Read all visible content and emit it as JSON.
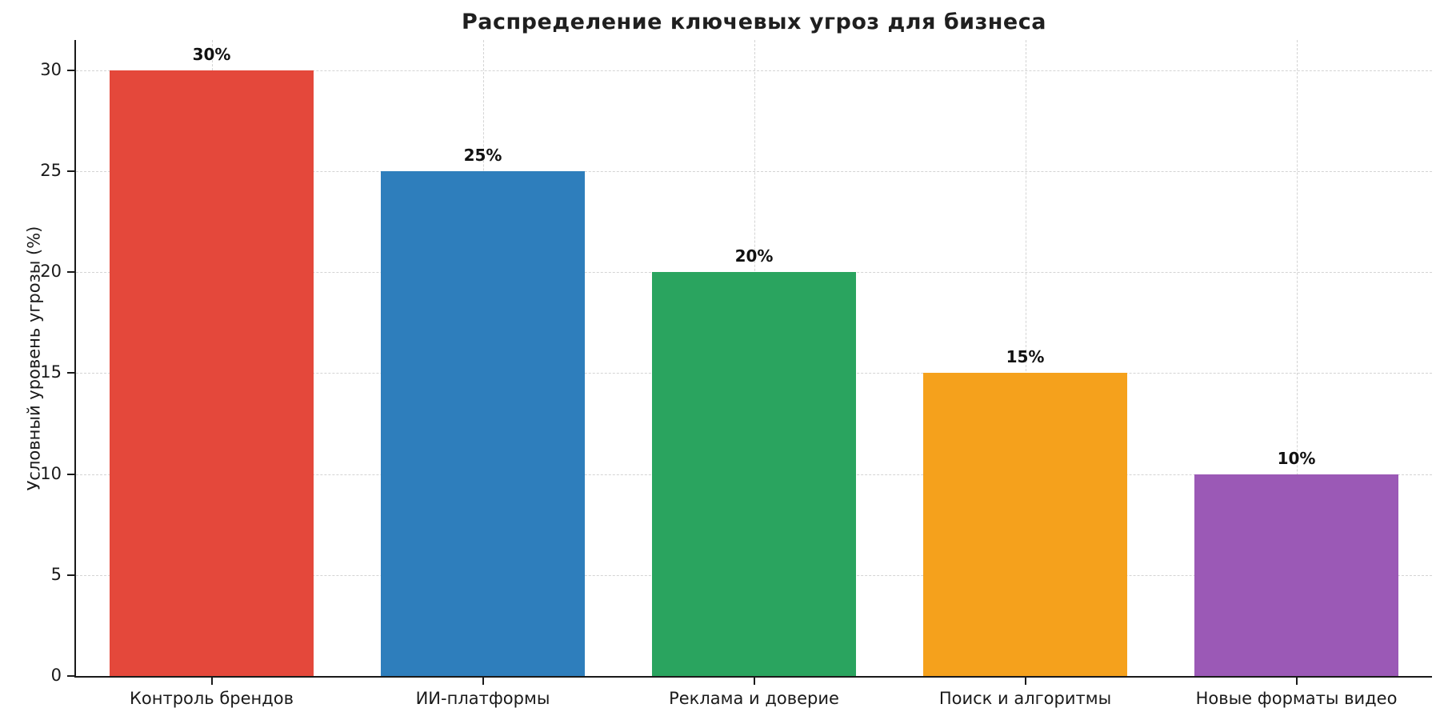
{
  "chart_data": {
    "type": "bar",
    "title": "Распределение ключевых угроз для бизнеса",
    "ylabel": "Условный уровень угрозы (%)",
    "xlabel": "",
    "categories": [
      "Контроль брендов",
      "ИИ-платформы",
      "Реклама и доверие",
      "Поиск и алгоритмы",
      "Новые форматы видео"
    ],
    "values": [
      30,
      25,
      20,
      15,
      10
    ],
    "value_labels": [
      "30%",
      "25%",
      "20%",
      "15%",
      "10%"
    ],
    "bar_colors": [
      "#e4483b",
      "#2e7ebc",
      "#2aa45f",
      "#f5a11c",
      "#9b59b6"
    ],
    "yticks": [
      0,
      5,
      10,
      15,
      20,
      25,
      30
    ],
    "ylim": [
      0,
      31.5
    ],
    "grid": "dashed-both-axes",
    "legend": "none",
    "colors": {
      "background": "#ffffff",
      "grid": "#d4d4d4",
      "axis": "#1a1a1a",
      "text": "#1a1a1a"
    }
  }
}
